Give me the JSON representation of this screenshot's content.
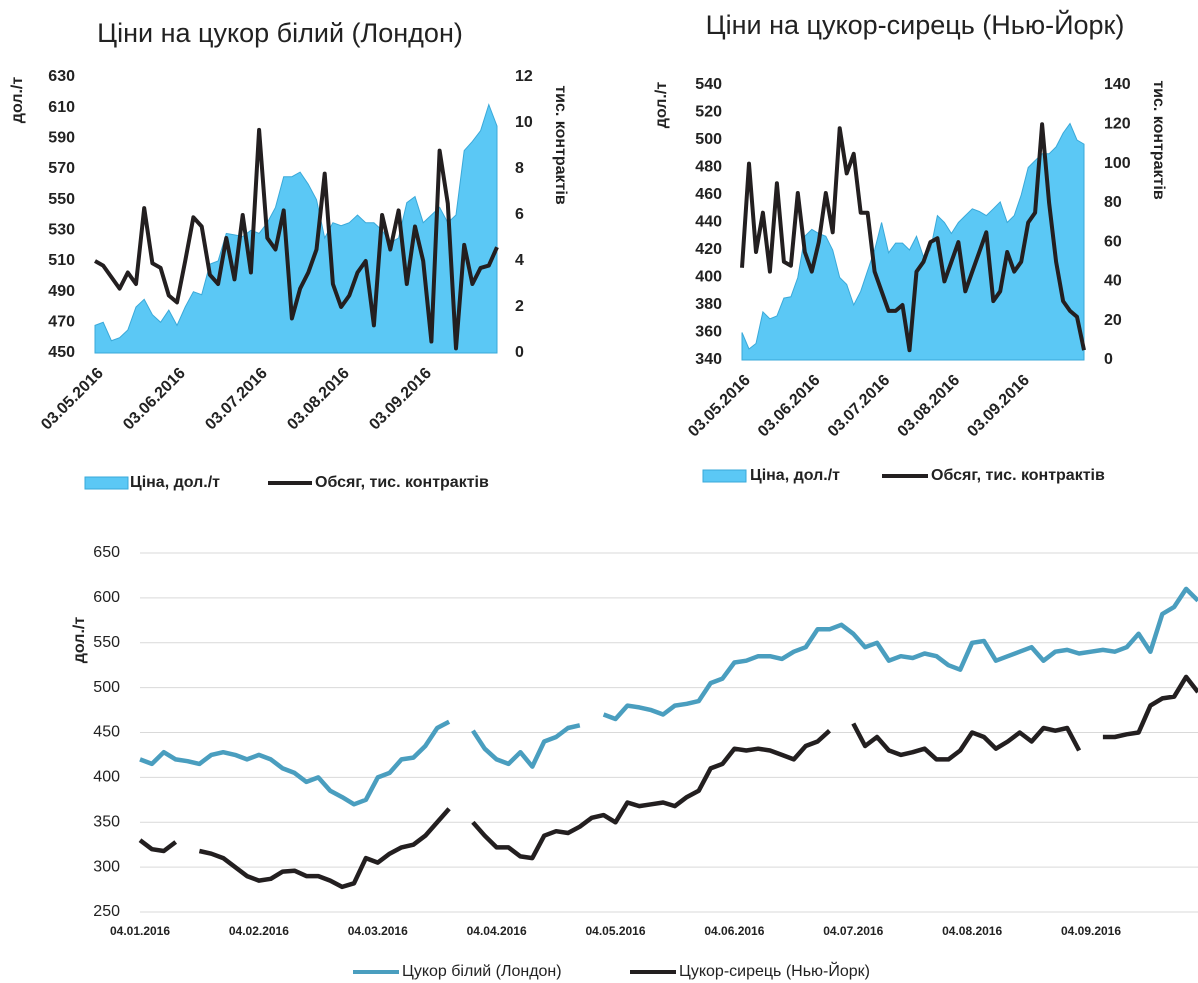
{
  "chart_data": [
    {
      "type": "area-line",
      "title": "Ціни на цукор білий (Лондон)",
      "y_label": "дол./т",
      "y2_label": "тис. контрактів",
      "categories": [
        "03.05.2016",
        null,
        null,
        null,
        null,
        null,
        null,
        null,
        null,
        null,
        "03.06.2016",
        null,
        null,
        null,
        null,
        null,
        null,
        null,
        null,
        null,
        "03.07.2016",
        null,
        null,
        null,
        null,
        null,
        null,
        null,
        null,
        null,
        "03.08.2016",
        null,
        null,
        null,
        null,
        null,
        null,
        null,
        null,
        null,
        "03.09.2016",
        null,
        null,
        null,
        null,
        null,
        null,
        null,
        null,
        null
      ],
      "ylim": [
        450,
        630
      ],
      "yticks": [
        450,
        470,
        490,
        510,
        530,
        550,
        570,
        590,
        610,
        630
      ],
      "y2lim": [
        0,
        12
      ],
      "y2ticks": [
        0,
        2,
        4,
        6,
        8,
        10,
        12
      ],
      "grid": false,
      "series": [
        {
          "name": "Ціна, дол./т",
          "kind": "area",
          "color": "#5bc8f5",
          "values": [
            468,
            470,
            458,
            460,
            465,
            480,
            485,
            475,
            470,
            478,
            468,
            480,
            490,
            488,
            508,
            510,
            528,
            527,
            526,
            530,
            528,
            535,
            545,
            565,
            565,
            568,
            560,
            550,
            525,
            535,
            533,
            535,
            540,
            535,
            535,
            530,
            522,
            525,
            548,
            552,
            535,
            540,
            545,
            535,
            540,
            582,
            588,
            595,
            612,
            598
          ]
        },
        {
          "name": "Обсяг, тис. контрактів",
          "kind": "line",
          "axis": "y2",
          "color": "#231f20",
          "values": [
            4,
            3.8,
            3.3,
            2.8,
            3.5,
            3,
            6.3,
            3.9,
            3.7,
            2.5,
            2.2,
            4,
            5.9,
            5.5,
            3.4,
            3,
            5,
            3.2,
            6,
            3.5,
            9.7,
            5,
            4.5,
            6.2,
            1.5,
            2.8,
            3.5,
            4.5,
            7.8,
            3,
            2,
            2.5,
            3.5,
            4,
            1.2,
            6,
            4.5,
            6.2,
            3,
            5.5,
            4,
            0.5,
            8.8,
            6.5,
            0.2,
            4.7,
            3,
            3.7,
            3.8,
            4.6
          ]
        }
      ]
    },
    {
      "type": "area-line",
      "title": "Ціни на цукор-сирець (Нью-Йорк)",
      "y_label": "дол./т",
      "y2_label": "тис. контрактів",
      "categories": [
        "03.05.2016",
        null,
        null,
        null,
        null,
        null,
        null,
        null,
        null,
        null,
        "03.06.2016",
        null,
        null,
        null,
        null,
        null,
        null,
        null,
        null,
        null,
        "03.07.2016",
        null,
        null,
        null,
        null,
        null,
        null,
        null,
        null,
        null,
        "03.08.2016",
        null,
        null,
        null,
        null,
        null,
        null,
        null,
        null,
        null,
        "03.09.2016",
        null,
        null,
        null,
        null,
        null,
        null,
        null,
        null,
        null
      ],
      "ylim": [
        340,
        540
      ],
      "yticks": [
        340,
        360,
        380,
        400,
        420,
        440,
        460,
        480,
        500,
        520,
        540
      ],
      "y2lim": [
        0,
        140
      ],
      "y2ticks": [
        0,
        20,
        40,
        60,
        80,
        100,
        120,
        140
      ],
      "grid": false,
      "series": [
        {
          "name": "Ціна, дол./т",
          "kind": "area",
          "color": "#5bc8f5",
          "values": [
            360,
            348,
            352,
            375,
            370,
            372,
            385,
            386,
            400,
            430,
            435,
            432,
            430,
            420,
            400,
            395,
            380,
            390,
            405,
            420,
            440,
            418,
            425,
            425,
            420,
            430,
            415,
            420,
            445,
            440,
            432,
            440,
            445,
            450,
            448,
            445,
            450,
            455,
            440,
            445,
            460,
            480,
            485,
            490,
            490,
            495,
            505,
            512,
            500,
            497
          ]
        },
        {
          "name": "Обсяг, тис. контрактів",
          "kind": "line",
          "axis": "y2",
          "color": "#231f20",
          "values": [
            47,
            100,
            55,
            75,
            45,
            90,
            50,
            48,
            85,
            55,
            45,
            60,
            85,
            65,
            118,
            95,
            105,
            75,
            75,
            45,
            35,
            25,
            25,
            28,
            5,
            45,
            50,
            60,
            62,
            40,
            50,
            60,
            35,
            45,
            55,
            65,
            30,
            35,
            55,
            45,
            50,
            70,
            75,
            120,
            80,
            50,
            30,
            25,
            22,
            5
          ]
        }
      ]
    },
    {
      "type": "line",
      "y_label": "дол./т",
      "categories": [
        "04.01.2016",
        null,
        null,
        null,
        null,
        null,
        null,
        null,
        null,
        null,
        "04.02.2016",
        null,
        null,
        null,
        null,
        null,
        null,
        null,
        null,
        null,
        "04.03.2016",
        null,
        null,
        null,
        null,
        null,
        null,
        null,
        null,
        null,
        "04.04.2016",
        null,
        null,
        null,
        null,
        null,
        null,
        null,
        null,
        null,
        "04.05.2016",
        null,
        null,
        null,
        null,
        null,
        null,
        null,
        null,
        null,
        "04.06.2016",
        null,
        null,
        null,
        null,
        null,
        null,
        null,
        null,
        null,
        "04.07.2016",
        null,
        null,
        null,
        null,
        null,
        null,
        null,
        null,
        null,
        "04.08.2016",
        null,
        null,
        null,
        null,
        null,
        null,
        null,
        null,
        null,
        "04.09.2016",
        null,
        null,
        null,
        null,
        null,
        null,
        null,
        null,
        null
      ],
      "ylim": [
        250,
        650
      ],
      "yticks": [
        250,
        300,
        350,
        400,
        450,
        500,
        550,
        600,
        650
      ],
      "grid": true,
      "series": [
        {
          "name": "Цукор білий (Лондон)",
          "kind": "line",
          "color": "#4a9ebf",
          "values": [
            420,
            415,
            428,
            420,
            418,
            415,
            425,
            428,
            425,
            420,
            425,
            420,
            410,
            405,
            395,
            400,
            385,
            378,
            370,
            375,
            400,
            405,
            420,
            422,
            435,
            455,
            462,
            null,
            452,
            432,
            420,
            415,
            428,
            412,
            440,
            445,
            455,
            458,
            null,
            470,
            465,
            480,
            478,
            475,
            470,
            480,
            482,
            485,
            505,
            510,
            528,
            530,
            535,
            535,
            532,
            540,
            545,
            565,
            565,
            570,
            560,
            545,
            550,
            530,
            535,
            533,
            538,
            535,
            525,
            520,
            550,
            552,
            530,
            535,
            540,
            545,
            530,
            540,
            542,
            538,
            540,
            542,
            540,
            545,
            560,
            540,
            582,
            590,
            610,
            597
          ]
        },
        {
          "name": "Цукор-сирець (Нью-Йорк)",
          "kind": "line",
          "color": "#231f20",
          "values": [
            330,
            320,
            318,
            328,
            null,
            318,
            315,
            310,
            300,
            290,
            285,
            287,
            295,
            296,
            290,
            290,
            285,
            278,
            282,
            310,
            305,
            315,
            322,
            325,
            335,
            350,
            365,
            null,
            350,
            335,
            322,
            322,
            312,
            310,
            335,
            340,
            338,
            345,
            355,
            358,
            350,
            372,
            368,
            370,
            372,
            368,
            378,
            385,
            410,
            415,
            432,
            430,
            432,
            430,
            425,
            420,
            435,
            440,
            452,
            null,
            460,
            435,
            445,
            430,
            425,
            428,
            432,
            420,
            420,
            430,
            450,
            445,
            432,
            440,
            450,
            440,
            455,
            452,
            455,
            430,
            null,
            445,
            445,
            448,
            450,
            480,
            488,
            490,
            512,
            495
          ]
        }
      ]
    }
  ]
}
